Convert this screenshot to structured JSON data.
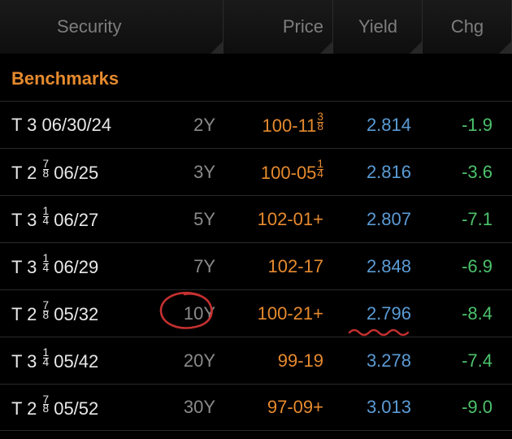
{
  "colors": {
    "bg": "#000000",
    "header_text": "#7d7d7d",
    "section_title": "#e68a2e",
    "security_text": "#e8e8e8",
    "tenor_text": "#8a8a8a",
    "price_text": "#e68a2e",
    "yield_text": "#5b9bd5",
    "chg_text": "#4cc26b",
    "row_border": "#2a2a2a",
    "annotation": "#c53030"
  },
  "header": {
    "security": "Security",
    "price": "Price",
    "yield": "Yield",
    "chg": "Chg"
  },
  "section_title": "Benchmarks",
  "rows": [
    {
      "security_pre": "T 3 06/30/24",
      "frac_n": "",
      "frac_d": "",
      "security_post": "",
      "tenor": "2Y",
      "price_pre": "100-11",
      "price_frac_n": "3",
      "price_frac_d": "8",
      "price_post": "",
      "yield": "2.814",
      "chg": "-1.9"
    },
    {
      "security_pre": "T 2 ",
      "frac_n": "7",
      "frac_d": "8",
      "security_post": " 06/25",
      "tenor": "3Y",
      "price_pre": "100-05",
      "price_frac_n": "1",
      "price_frac_d": "4",
      "price_post": "",
      "yield": "2.816",
      "chg": "-3.6"
    },
    {
      "security_pre": "T 3 ",
      "frac_n": "1",
      "frac_d": "4",
      "security_post": " 06/27",
      "tenor": "5Y",
      "price_pre": "102-01+",
      "price_frac_n": "",
      "price_frac_d": "",
      "price_post": "",
      "yield": "2.807",
      "chg": "-7.1"
    },
    {
      "security_pre": "T 3 ",
      "frac_n": "1",
      "frac_d": "4",
      "security_post": " 06/29",
      "tenor": "7Y",
      "price_pre": "102-17",
      "price_frac_n": "",
      "price_frac_d": "",
      "price_post": "",
      "yield": "2.848",
      "chg": "-6.9"
    },
    {
      "security_pre": "T 2 ",
      "frac_n": "7",
      "frac_d": "8",
      "security_post": " 05/32",
      "tenor": "10Y",
      "price_pre": "100-21+",
      "price_frac_n": "",
      "price_frac_d": "",
      "price_post": "",
      "yield": "2.796",
      "chg": "-8.4"
    },
    {
      "security_pre": "T 3 ",
      "frac_n": "1",
      "frac_d": "4",
      "security_post": " 05/42",
      "tenor": "20Y",
      "price_pre": "99-19",
      "price_frac_n": "",
      "price_frac_d": "",
      "price_post": "",
      "yield": "3.278",
      "chg": "-7.4"
    },
    {
      "security_pre": "T 2 ",
      "frac_n": "7",
      "frac_d": "8",
      "security_post": " 05/52",
      "tenor": "30Y",
      "price_pre": "97-09+",
      "price_frac_n": "",
      "price_frac_d": "",
      "price_post": "",
      "yield": "3.013",
      "chg": "-9.0"
    }
  ],
  "annotations": {
    "circle_target_row": 4,
    "wavy_target_row": 4
  }
}
